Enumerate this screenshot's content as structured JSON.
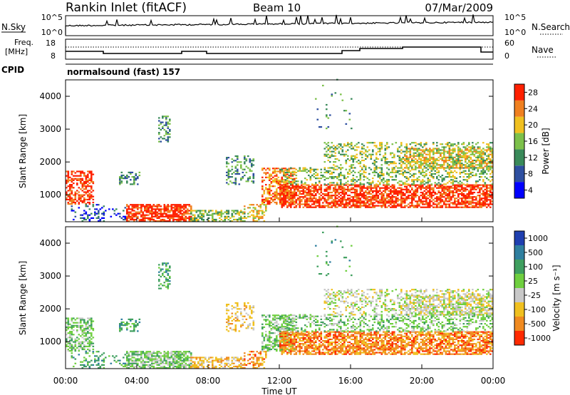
{
  "header": {
    "title": "Rankin Inlet (fitACF)",
    "beam": "Beam 10",
    "date": "07/Mar/2009"
  },
  "panels": {
    "nsky_label": "N.Sky",
    "nsearch_label": "N.Search",
    "nsky_ticks": [
      "10^5",
      "10^0"
    ],
    "nsearch_ticks": [
      "10^5",
      "10^0"
    ],
    "freq_label_1": "Freq.",
    "freq_label_2": "[MHz]",
    "freq_ticks": [
      "18",
      "8"
    ],
    "nave_label": "Nave",
    "nave_ticks": [
      "60",
      "0"
    ],
    "cpid_label": "CPID",
    "cpid_value": "normalsound (fast) 157"
  },
  "chart_data": [
    {
      "type": "heatmap",
      "name": "power",
      "ylabel": "Slant Range [km]",
      "ylim": [
        180,
        4500
      ],
      "y_ticks": [
        "1000",
        "2000",
        "3000",
        "4000"
      ],
      "colorbar_label": "Power [dB]",
      "colorbar_ticks": [
        "4",
        "8",
        "12",
        "16",
        "20",
        "24",
        "28"
      ],
      "colors": [
        "#0000ff",
        "#2e4fa0",
        "#3a8a5a",
        "#7cc04a",
        "#f0c020",
        "#f08020",
        "#ff2000"
      ]
    },
    {
      "type": "heatmap",
      "name": "velocity",
      "ylabel": "Slant Range [km]",
      "ylim": [
        180,
        4500
      ],
      "y_ticks": [
        "1000",
        "2000",
        "3000",
        "4000"
      ],
      "colorbar_label": "Velocity [m s⁻¹]",
      "colorbar_ticks": [
        "1000",
        "500",
        "100",
        "25",
        "-25",
        "-100",
        "-500",
        "-1000"
      ],
      "colors": [
        "#1f3fb0",
        "#2f7f9f",
        "#3f9f5f",
        "#6fcf3f",
        "#c8c8c8",
        "#f0c020",
        "#f08a20",
        "#ff2a00"
      ]
    }
  ],
  "x_axis": {
    "label": "Time UT",
    "ticks": [
      "00:00",
      "04:00",
      "08:00",
      "12:00",
      "16:00",
      "20:00",
      "00:00"
    ]
  }
}
